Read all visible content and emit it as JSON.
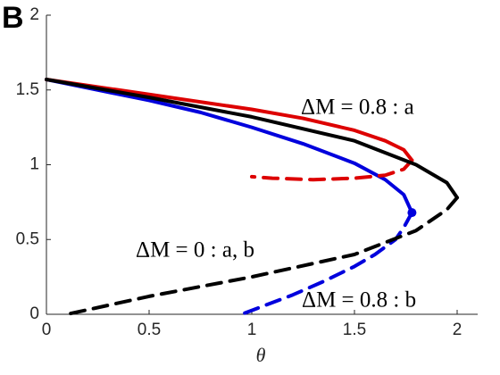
{
  "chart_data": {
    "type": "line",
    "panel_label": "B",
    "x_label": "θ",
    "xlim": [
      0,
      2.1
    ],
    "ylim": [
      0,
      2
    ],
    "xticks": [
      0,
      0.5,
      1,
      1.5,
      2
    ],
    "yticks": [
      0,
      0.5,
      1,
      1.5,
      2
    ],
    "grid": false,
    "annotations": [
      "ΔM = 0.8 : a",
      "ΔM = 0 : a, b",
      "ΔM = 0.8 : b"
    ],
    "series": [
      {
        "color": "#0000dd",
        "dash": false,
        "end_marker": true,
        "x": [
          0,
          0.25,
          0.5,
          0.75,
          1.0,
          1.25,
          1.5,
          1.65,
          1.74,
          1.78
        ],
        "values": [
          1.57,
          1.5,
          1.43,
          1.35,
          1.25,
          1.14,
          1.01,
          0.9,
          0.8,
          0.68
        ]
      },
      {
        "color": "#0000dd",
        "dash": true,
        "end_marker": false,
        "x": [
          1.78,
          1.74,
          1.7,
          1.6,
          1.5,
          1.35,
          1.2,
          0.95
        ],
        "values": [
          0.68,
          0.58,
          0.5,
          0.4,
          0.32,
          0.22,
          0.13,
          0
        ]
      },
      {
        "color": "#dd0000",
        "dash": false,
        "end_marker": false,
        "x": [
          0,
          0.5,
          1.0,
          1.25,
          1.5,
          1.65,
          1.74,
          1.78
        ],
        "values": [
          1.57,
          1.47,
          1.37,
          1.31,
          1.23,
          1.16,
          1.1,
          1.03
        ]
      },
      {
        "color": "#dd0000",
        "dash": true,
        "end_marker": false,
        "x": [
          1.78,
          1.74,
          1.65,
          1.5,
          1.3,
          1.1,
          1.0
        ],
        "values": [
          1.03,
          0.97,
          0.93,
          0.91,
          0.9,
          0.91,
          0.92
        ]
      },
      {
        "color": "#000000",
        "dash": false,
        "end_marker": false,
        "x": [
          0,
          0.5,
          1.0,
          1.5,
          1.8,
          1.95,
          2.0
        ],
        "values": [
          1.57,
          1.45,
          1.32,
          1.16,
          1.0,
          0.88,
          0.78
        ]
      },
      {
        "color": "#000000",
        "dash": true,
        "end_marker": false,
        "x": [
          2.0,
          1.95,
          1.8,
          1.5,
          1.0,
          0.5,
          0.1
        ],
        "values": [
          0.78,
          0.7,
          0.56,
          0.4,
          0.25,
          0.12,
          0
        ]
      }
    ]
  }
}
